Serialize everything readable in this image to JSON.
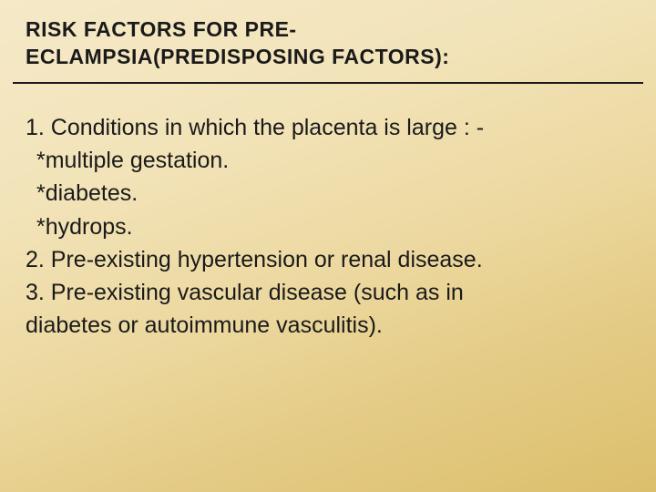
{
  "slide": {
    "background_gradient": [
      "#f5e9c8",
      "#f2e3b8",
      "#ecd89f",
      "#e4cb85",
      "#dcbf6d"
    ],
    "title_color": "#1a1a1a",
    "body_color": "#1a1a1a",
    "title_fontsize_pt": 17,
    "body_fontsize_pt": 19,
    "title_lines": [
      "RISK FACTORS FOR PRE-",
      "ECLAMPSIA(PREDISPOSING FACTORS):"
    ],
    "body_lines": [
      "1. Conditions in which the placenta is large : -",
      " *multiple gestation.",
      "  *diabetes.",
      "  *hydrops.",
      "2. Pre-existing hypertension or renal disease.",
      "3. Pre-existing vascular disease (such as in",
      "diabetes or autoimmune vasculitis)."
    ]
  }
}
